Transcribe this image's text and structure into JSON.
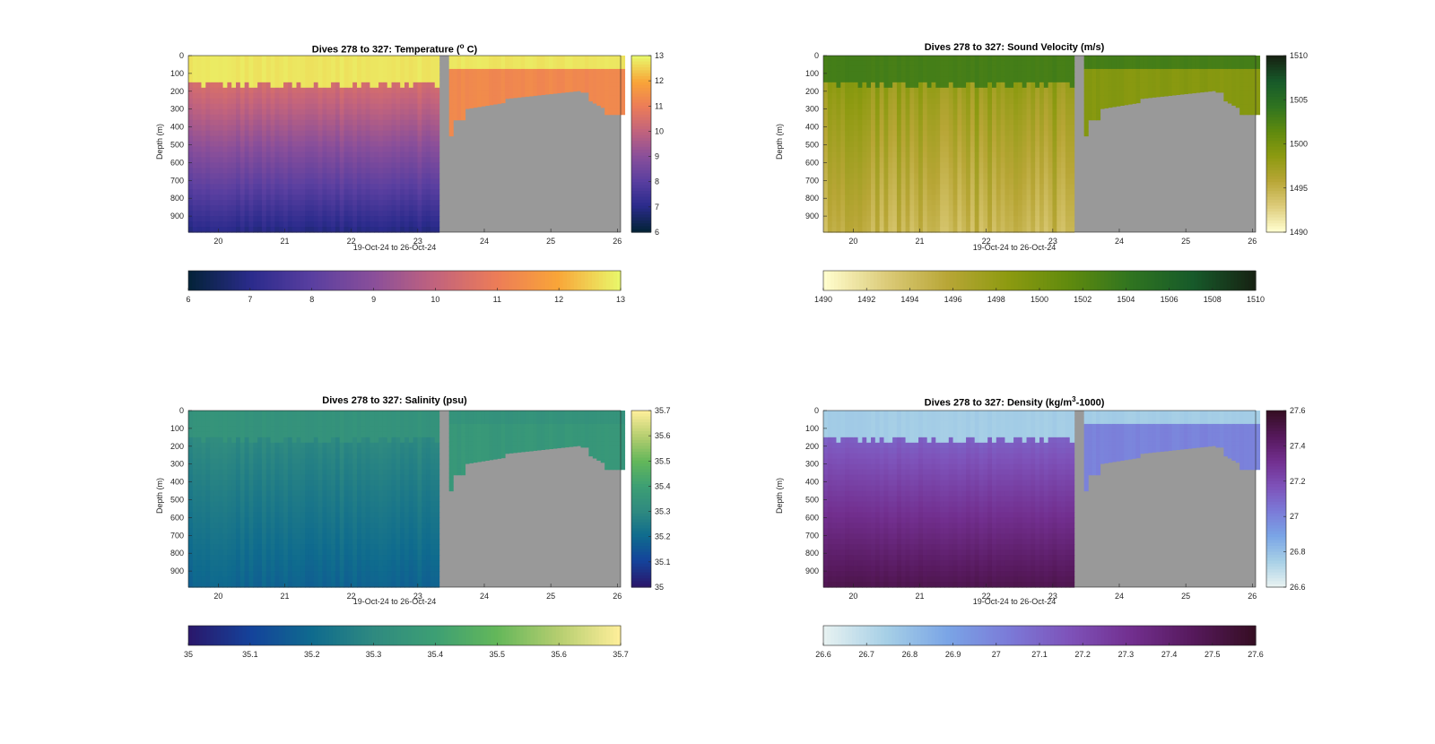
{
  "chart_data": [
    {
      "type": "heatmap",
      "title": "Dives 278 to 327: Temperature (",
      "title_sup": "o",
      "title_suffix": " C)",
      "ylabel": "Depth (m)",
      "xlabel": "19-Oct-24 to 26-Oct-24",
      "x_ticks": [
        "20",
        "21",
        "22",
        "23",
        "24",
        "25",
        "26"
      ],
      "y_ticks": [
        "0",
        "100",
        "200",
        "300",
        "400",
        "500",
        "600",
        "700",
        "800",
        "900"
      ],
      "xlim": [
        19.55,
        26.05
      ],
      "ylim": [
        990,
        0
      ],
      "colormap": "thermal",
      "clim": [
        6,
        13
      ],
      "colorbar_ticks": [
        "6",
        "7",
        "8",
        "9",
        "10",
        "11",
        "12",
        "13"
      ],
      "colorbar_h_ticks": [
        "6",
        "7",
        "8",
        "9",
        "10",
        "11",
        "12",
        "13"
      ],
      "surface_value": 12.8,
      "deep_value": 7.2,
      "east_upper_value": 11.3,
      "deep_profile": "cooling"
    },
    {
      "type": "heatmap",
      "title": "Dives 278 to 327: Sound Velocity (m/s)",
      "ylabel": "Depth (m)",
      "xlabel": "19-Oct-24 to 26-Oct-24",
      "x_ticks": [
        "20",
        "21",
        "22",
        "23",
        "24",
        "25",
        "26"
      ],
      "y_ticks": [
        "0",
        "100",
        "200",
        "300",
        "400",
        "500",
        "600",
        "700",
        "800",
        "900"
      ],
      "xlim": [
        19.55,
        26.05
      ],
      "ylim": [
        990,
        0
      ],
      "colormap": "speed",
      "clim": [
        1490,
        1510
      ],
      "colorbar_ticks": [
        "1490",
        "1495",
        "1500",
        "1505",
        "1510"
      ],
      "colorbar_h_ticks": [
        "1490",
        "1492",
        "1494",
        "1496",
        "1498",
        "1500",
        "1502",
        "1504",
        "1506",
        "1508",
        "1510"
      ],
      "surface_value": 1503,
      "deep_value": 1495,
      "east_upper_value": 1499,
      "deep_profile": "sound"
    },
    {
      "type": "heatmap",
      "title": "Dives 278 to 327: Salinity (psu)",
      "ylabel": "Depth (m)",
      "xlabel": "19-Oct-24 to 26-Oct-24",
      "x_ticks": [
        "20",
        "21",
        "22",
        "23",
        "24",
        "25",
        "26"
      ],
      "y_ticks": [
        "0",
        "100",
        "200",
        "300",
        "400",
        "500",
        "600",
        "700",
        "800",
        "900"
      ],
      "xlim": [
        19.55,
        26.05
      ],
      "ylim": [
        990,
        0
      ],
      "colormap": "haline",
      "clim": [
        35,
        35.7
      ],
      "colorbar_ticks": [
        "35",
        "35.1",
        "35.2",
        "35.3",
        "35.4",
        "35.5",
        "35.6",
        "35.7"
      ],
      "colorbar_h_ticks": [
        "35",
        "35.1",
        "35.2",
        "35.3",
        "35.4",
        "35.5",
        "35.6",
        "35.7"
      ],
      "surface_value": 35.34,
      "deep_value": 35.2,
      "east_upper_value": 35.36,
      "deep_profile": "salinity"
    },
    {
      "type": "heatmap",
      "title": "Dives 278 to 327: Density (kg/m",
      "title_sup": "3",
      "title_suffix": "-1000)",
      "ylabel": "Depth (m)",
      "xlabel": "19-Oct-24 to 26-Oct-24",
      "x_ticks": [
        "20",
        "21",
        "22",
        "23",
        "24",
        "25",
        "26"
      ],
      "y_ticks": [
        "0",
        "100",
        "200",
        "300",
        "400",
        "500",
        "600",
        "700",
        "800",
        "900"
      ],
      "xlim": [
        19.55,
        26.05
      ],
      "ylim": [
        990,
        0
      ],
      "colormap": "dense",
      "clim": [
        26.6,
        27.6
      ],
      "colorbar_ticks": [
        "26.6",
        "26.8",
        "27",
        "27.2",
        "27.4",
        "27.6"
      ],
      "colorbar_h_ticks": [
        "26.6",
        "26.7",
        "26.8",
        "26.9",
        "27",
        "27.1",
        "27.2",
        "27.3",
        "27.4",
        "27.5",
        "27.6"
      ],
      "surface_value": 26.75,
      "deep_value": 27.5,
      "east_upper_value": 27.0,
      "deep_profile": "density"
    }
  ],
  "colors": {
    "nodata": "#999999",
    "axis": "#262626",
    "title": "#000000"
  }
}
